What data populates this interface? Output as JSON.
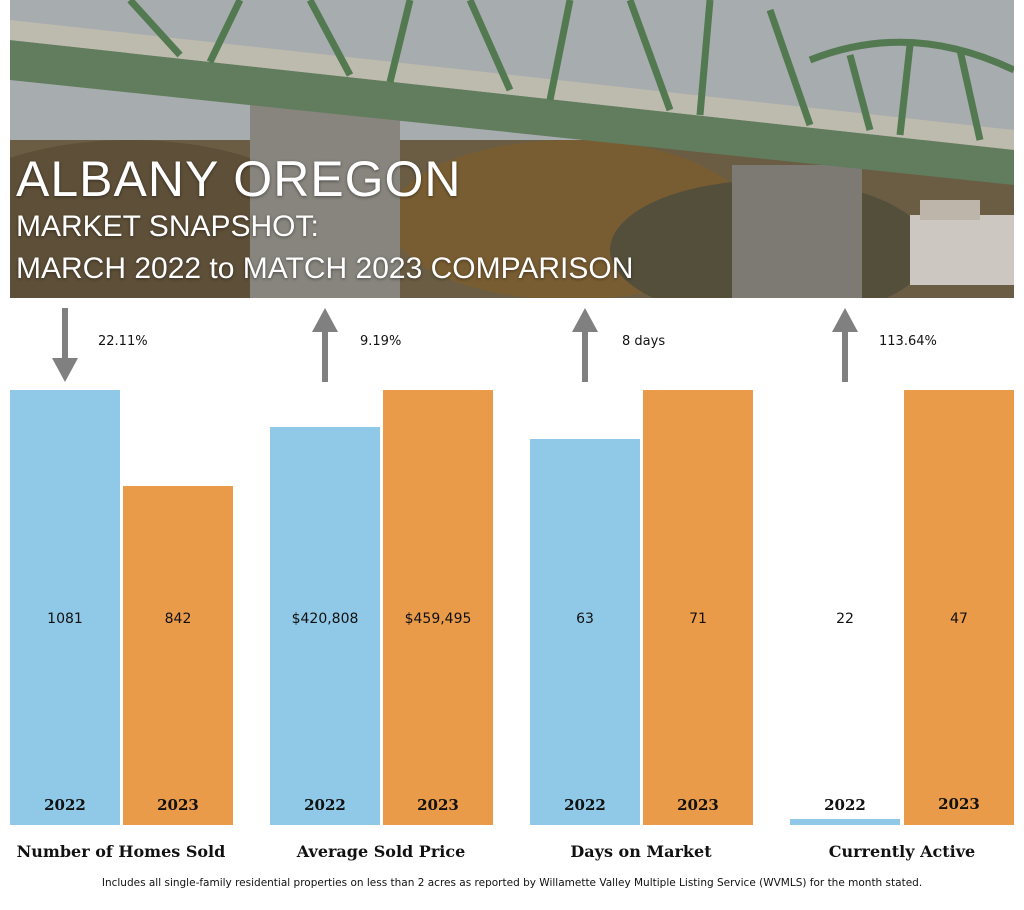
{
  "header": {
    "title": "ALBANY OREGON",
    "subtitle_line1": "MARKET SNAPSHOT:",
    "subtitle_line2": "MARCH 2022 to MATCH 2023 COMPARISON"
  },
  "colors": {
    "year_2022": "#90c9e7",
    "year_2023": "#e99b4a",
    "arrow": "#808080"
  },
  "chart_data": {
    "type": "bar",
    "series_years": [
      "2022",
      "2023"
    ],
    "groups": [
      {
        "label": "Number of Homes Sold",
        "values": [
          1081,
          842
        ],
        "value_labels": [
          "1081",
          "842"
        ],
        "year_labels": [
          "2022",
          "2023"
        ],
        "change": "22.11%",
        "direction": "down"
      },
      {
        "label": "Average Sold Price",
        "values": [
          420808,
          459495
        ],
        "value_labels": [
          "$420,808",
          "$459,495"
        ],
        "year_labels": [
          "2022",
          "2023"
        ],
        "change": "9.19%",
        "direction": "up"
      },
      {
        "label": "Days on Market",
        "values": [
          63,
          71
        ],
        "value_labels": [
          "63",
          "71"
        ],
        "year_labels": [
          "2022",
          "2023"
        ],
        "change": "8 days",
        "direction": "up"
      },
      {
        "label": "Currently Active",
        "values": [
          22,
          47
        ],
        "value_labels": [
          "22",
          "47"
        ],
        "year_labels": [
          "2022",
          "2023"
        ],
        "change": "113.64%",
        "direction": "up"
      }
    ]
  },
  "footnote": "Includes all single-family residential properties on less than 2 acres as reported by Willamette Valley Multiple Listing Service (WVMLS) for the month stated."
}
